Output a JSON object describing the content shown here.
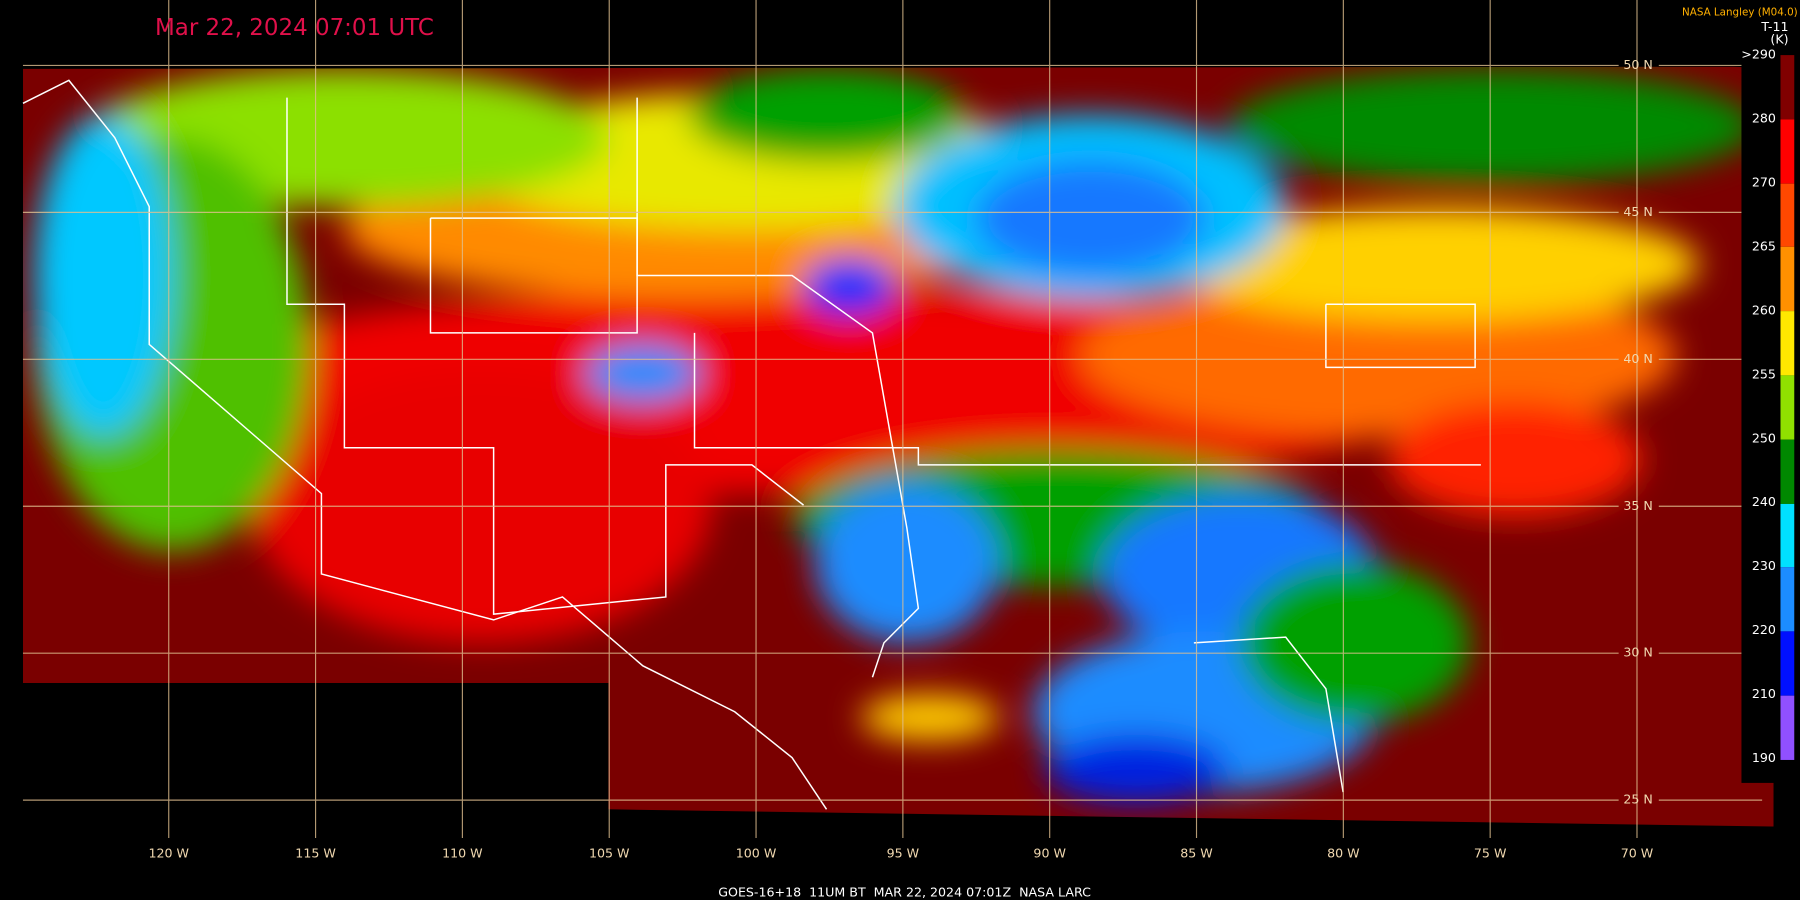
{
  "header": {
    "timestamp": "Mar 22, 2024 07:01 UTC",
    "credit": "NASA Langley (M04.0)"
  },
  "legend": {
    "title": "T-11",
    "units": "(K)",
    "labels": [
      ">290",
      "280",
      "270",
      "265",
      "260",
      "255",
      "250",
      "240",
      "230",
      "220",
      "210",
      "190"
    ]
  },
  "grid": {
    "latitudes": [
      "50 N",
      "45 N",
      "40 N",
      "35 N",
      "30 N",
      "25 N"
    ],
    "longitudes": [
      "120 W",
      "115 W",
      "110 W",
      "105 W",
      "100 W",
      "95 W",
      "90 W",
      "85 W",
      "80 W",
      "75 W",
      "70 W"
    ]
  },
  "footer": "GOES-16+18  11UM BT  MAR 22, 2024 07:01Z  NASA LARC"
}
